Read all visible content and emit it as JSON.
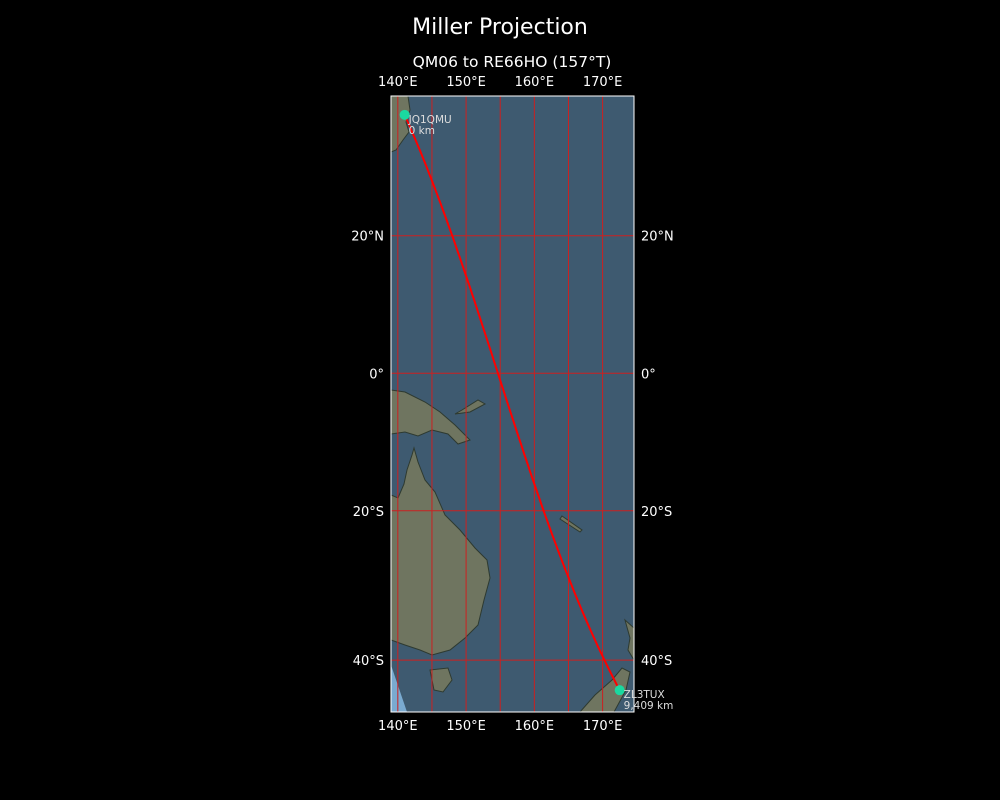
{
  "figure_title": "Miller Projection",
  "map_title": "QM06 to RE66HO (157°T)",
  "projection": "miller",
  "extent": {
    "lon": [
      139.0,
      174.6
    ],
    "lat": [
      -46.3,
      38.8
    ]
  },
  "gridlines": {
    "color": "#cc2020",
    "lons": [
      140,
      145,
      150,
      155,
      160,
      165,
      170
    ],
    "lats": [
      20,
      0,
      -20,
      -40
    ]
  },
  "lon_tick_labels": [
    {
      "lon": 140,
      "text": "140°E"
    },
    {
      "lon": 150,
      "text": "150°E"
    },
    {
      "lon": 160,
      "text": "160°E"
    },
    {
      "lon": 170,
      "text": "170°E"
    }
  ],
  "lat_tick_labels": [
    {
      "lat": 20,
      "text": "20°N"
    },
    {
      "lat": 0,
      "text": "0°"
    },
    {
      "lat": -20,
      "text": "20°S"
    },
    {
      "lat": -40,
      "text": "40°S"
    }
  ],
  "path": {
    "color": "#ff0000",
    "type": "great-circle"
  },
  "stations": [
    {
      "call": "JQ1QMU",
      "distance": "0 km",
      "lon": 141.0,
      "lat": 36.4,
      "color": "#1ad9a0"
    },
    {
      "call": "ZL3TUX",
      "distance": "9,409 km",
      "lon": 172.5,
      "lat": -43.7,
      "color": "#1ad9a0"
    }
  ],
  "colors": {
    "ocean": "#3e5a70",
    "land": "#6f7560",
    "background": "#000000"
  }
}
